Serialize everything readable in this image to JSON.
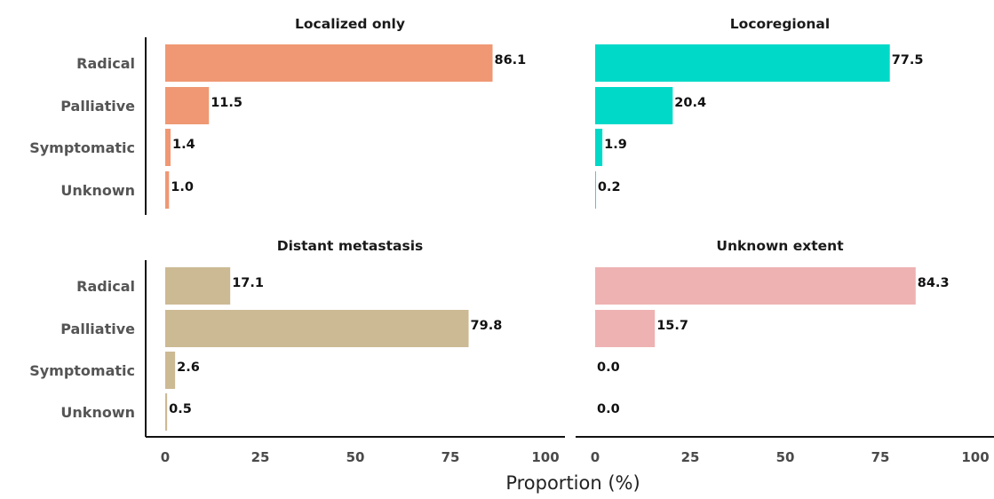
{
  "chart_data": {
    "type": "bar",
    "orientation": "horizontal",
    "categories": [
      "Radical",
      "Palliative",
      "Symptomatic",
      "Unknown"
    ],
    "xlabel": "Proportion (%)",
    "xlim": [
      0,
      100
    ],
    "xticks": [
      "0",
      "25",
      "50",
      "75",
      "100"
    ],
    "grid": false,
    "panels": [
      {
        "title": "Localized only",
        "color": "#EF9873",
        "values": [
          86.1,
          11.5,
          1.4,
          1.0
        ],
        "value_labels": [
          "86.1",
          "11.5",
          "1.4",
          "1.0"
        ]
      },
      {
        "title": "Locoregional",
        "color": "#00D9C8",
        "values": [
          77.5,
          20.4,
          1.9,
          0.2
        ],
        "value_labels": [
          "77.5",
          "20.4",
          "1.9",
          "0.2"
        ]
      },
      {
        "title": "Distant metastasis",
        "color": "#CCBA94",
        "values": [
          17.1,
          79.8,
          2.6,
          0.5
        ],
        "value_labels": [
          "17.1",
          "79.8",
          "2.6",
          "0.5"
        ]
      },
      {
        "title": "Unknown extent",
        "color": "#EEB2B2",
        "values": [
          84.3,
          15.7,
          0.0,
          0.0
        ],
        "value_labels": [
          "84.3",
          "15.7",
          "0.0",
          "0.0"
        ]
      }
    ]
  }
}
